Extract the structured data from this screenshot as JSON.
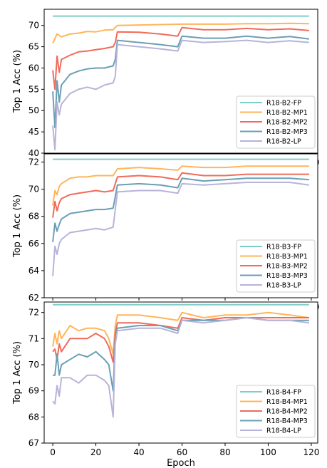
{
  "chart_data": [
    {
      "type": "line",
      "title": "",
      "xlabel": "",
      "ylabel": "Top 1 Acc (%)",
      "xlim": [
        -4,
        123
      ],
      "ylim": [
        40,
        73.8
      ],
      "xticks": [
        "0",
        "20",
        "40",
        "60",
        "80",
        "100",
        "120"
      ],
      "yticks": [
        "40",
        "45",
        "50",
        "55",
        "60",
        "65",
        "70"
      ],
      "grid": false,
      "legend_position": "bottom-right",
      "series": [
        {
          "name": "R18-B2-FP",
          "color": "#7fcdc8",
          "x": [
            0,
            119
          ],
          "values": [
            72.2,
            72.2
          ]
        },
        {
          "name": "R18-B2-MP1",
          "color": "#ffb55a",
          "x": [
            0,
            2,
            4,
            8,
            12,
            16,
            20,
            24,
            28,
            30,
            40,
            50,
            60,
            70,
            80,
            90,
            100,
            110,
            119
          ],
          "values": [
            65.8,
            68.0,
            67.3,
            68.0,
            68.2,
            68.6,
            68.5,
            68.9,
            69.0,
            70.0,
            70.1,
            70.2,
            70.3,
            70.3,
            70.3,
            70.4,
            70.4,
            70.5,
            70.4
          ]
        },
        {
          "name": "R18-B2-MP2",
          "color": "#f06b5a",
          "x": [
            0,
            1,
            2,
            3,
            4,
            8,
            12,
            16,
            20,
            24,
            28,
            29,
            30,
            40,
            50,
            58,
            60,
            70,
            80,
            90,
            100,
            110,
            119
          ],
          "values": [
            59.5,
            55.0,
            62.8,
            59.0,
            62.0,
            63.0,
            63.8,
            64.0,
            64.3,
            64.6,
            65.0,
            66.0,
            68.5,
            68.4,
            68.0,
            67.5,
            69.5,
            69.0,
            69.0,
            69.3,
            69.0,
            69.2,
            68.8
          ]
        },
        {
          "name": "R18-B2-MP3",
          "color": "#6a9fb5",
          "x": [
            0,
            1,
            2,
            3,
            4,
            8,
            12,
            16,
            20,
            24,
            28,
            29,
            30,
            40,
            50,
            58,
            60,
            70,
            80,
            90,
            100,
            110,
            119
          ],
          "values": [
            54.5,
            46.0,
            57.0,
            52.0,
            56.0,
            58.5,
            59.3,
            59.8,
            60.0,
            60.0,
            60.5,
            62.0,
            66.5,
            66.0,
            65.5,
            65.0,
            67.5,
            67.0,
            67.0,
            67.5,
            67.0,
            67.4,
            66.8
          ]
        },
        {
          "name": "R18-B2-LP",
          "color": "#b8b3d9",
          "x": [
            0,
            1,
            2,
            3,
            4,
            8,
            12,
            16,
            20,
            24,
            28,
            29,
            30,
            40,
            50,
            58,
            60,
            70,
            80,
            90,
            100,
            110,
            119
          ],
          "values": [
            46.5,
            40.8,
            52.0,
            49.0,
            51.5,
            54.0,
            55.0,
            55.5,
            55.0,
            56.0,
            56.5,
            58.0,
            65.5,
            65.0,
            64.5,
            64.0,
            66.5,
            66.0,
            66.2,
            66.5,
            66.0,
            66.4,
            66.0
          ]
        }
      ]
    },
    {
      "type": "line",
      "title": "",
      "xlabel": "",
      "ylabel": "Top 1 Acc (%)",
      "xlim": [
        -4,
        123
      ],
      "ylim": [
        62,
        72.6
      ],
      "xticks": [
        "0",
        "20",
        "40",
        "60",
        "80",
        "100",
        "120"
      ],
      "yticks": [
        "62",
        "64",
        "66",
        "68",
        "70",
        "72"
      ],
      "grid": false,
      "legend_position": "bottom-right",
      "series": [
        {
          "name": "R18-B3-FP",
          "color": "#7fcdc8",
          "x": [
            0,
            119
          ],
          "values": [
            72.2,
            72.2
          ]
        },
        {
          "name": "R18-B3-MP1",
          "color": "#ffb55a",
          "x": [
            0,
            1,
            2,
            3,
            4,
            8,
            12,
            16,
            20,
            24,
            28,
            30,
            40,
            50,
            58,
            60,
            70,
            80,
            90,
            100,
            110,
            119
          ],
          "values": [
            68.8,
            69.9,
            69.6,
            70.2,
            70.4,
            70.8,
            70.9,
            70.9,
            71.0,
            71.0,
            71.0,
            71.5,
            71.6,
            71.5,
            71.4,
            71.7,
            71.6,
            71.6,
            71.7,
            71.7,
            71.7,
            71.7
          ]
        },
        {
          "name": "R18-B3-MP2",
          "color": "#f06b5a",
          "x": [
            0,
            1,
            2,
            3,
            4,
            8,
            12,
            16,
            20,
            24,
            28,
            30,
            40,
            50,
            58,
            60,
            70,
            80,
            90,
            100,
            110,
            119
          ],
          "values": [
            67.9,
            69.1,
            68.4,
            69.0,
            69.3,
            69.6,
            69.7,
            69.8,
            69.9,
            69.8,
            69.9,
            70.9,
            71.0,
            70.9,
            70.7,
            71.2,
            71.0,
            71.0,
            71.1,
            71.1,
            71.1,
            71.1
          ]
        },
        {
          "name": "R18-B3-MP3",
          "color": "#6a9fb5",
          "x": [
            0,
            1,
            2,
            3,
            4,
            8,
            12,
            16,
            20,
            24,
            28,
            30,
            40,
            50,
            58,
            60,
            70,
            80,
            90,
            100,
            110,
            119
          ],
          "values": [
            66.1,
            67.5,
            66.9,
            67.4,
            67.8,
            68.2,
            68.3,
            68.4,
            68.5,
            68.5,
            68.6,
            70.3,
            70.4,
            70.3,
            70.1,
            70.8,
            70.6,
            70.7,
            70.8,
            70.8,
            70.8,
            70.7
          ]
        },
        {
          "name": "R18-B3-LP",
          "color": "#b8b3d9",
          "x": [
            0,
            1,
            2,
            3,
            4,
            8,
            12,
            16,
            20,
            24,
            28,
            30,
            40,
            50,
            58,
            60,
            70,
            80,
            90,
            100,
            110,
            119
          ],
          "values": [
            63.6,
            65.8,
            65.2,
            66.0,
            66.3,
            66.8,
            66.9,
            67.0,
            67.1,
            67.0,
            67.2,
            69.8,
            69.9,
            69.9,
            69.7,
            70.4,
            70.3,
            70.4,
            70.5,
            70.5,
            70.5,
            70.3
          ]
        }
      ]
    },
    {
      "type": "line",
      "title": "",
      "xlabel": "Epoch",
      "ylabel": "Top 1 Acc (%)",
      "xlim": [
        -4,
        123
      ],
      "ylim": [
        67,
        72.4
      ],
      "xticks": [
        "0",
        "20",
        "40",
        "60",
        "80",
        "100",
        "120"
      ],
      "yticks": [
        "67",
        "68",
        "69",
        "70",
        "71",
        "72"
      ],
      "grid": false,
      "legend_position": "bottom-right",
      "series": [
        {
          "name": "R18-B4-FP",
          "color": "#7fcdc8",
          "x": [
            0,
            119
          ],
          "values": [
            72.3,
            72.3
          ]
        },
        {
          "name": "R18-B4-MP1",
          "color": "#ffb55a",
          "x": [
            0,
            1,
            2,
            3,
            4,
            8,
            12,
            16,
            20,
            24,
            26,
            28,
            29,
            30,
            40,
            50,
            58,
            60,
            70,
            80,
            90,
            100,
            110,
            119
          ],
          "values": [
            70.7,
            71.2,
            70.8,
            71.3,
            71.0,
            71.5,
            71.3,
            71.4,
            71.4,
            71.3,
            71.0,
            70.4,
            71.5,
            71.9,
            71.9,
            71.8,
            71.7,
            72.0,
            71.8,
            71.9,
            71.9,
            72.0,
            71.9,
            71.8
          ]
        },
        {
          "name": "R18-B4-MP2",
          "color": "#f06b5a",
          "x": [
            0,
            1,
            2,
            3,
            4,
            8,
            12,
            16,
            20,
            24,
            26,
            28,
            29,
            30,
            40,
            50,
            58,
            60,
            70,
            80,
            90,
            100,
            110,
            119
          ],
          "values": [
            70.5,
            70.6,
            70.2,
            70.8,
            70.5,
            71.0,
            71.0,
            71.0,
            71.2,
            71.0,
            70.7,
            70.1,
            71.2,
            71.6,
            71.6,
            71.5,
            71.4,
            71.8,
            71.7,
            71.8,
            71.8,
            71.8,
            71.8,
            71.8
          ]
        },
        {
          "name": "R18-B4-MP3",
          "color": "#6a9fb5",
          "x": [
            0,
            1,
            2,
            3,
            4,
            8,
            12,
            16,
            20,
            24,
            26,
            28,
            29,
            30,
            40,
            50,
            58,
            60,
            70,
            80,
            90,
            100,
            110,
            119
          ],
          "values": [
            69.6,
            69.6,
            70.4,
            69.6,
            70.0,
            70.2,
            70.4,
            70.3,
            70.5,
            70.2,
            70.0,
            69.0,
            71.0,
            71.4,
            71.5,
            71.5,
            71.3,
            71.7,
            71.7,
            71.7,
            71.8,
            71.7,
            71.7,
            71.7
          ]
        },
        {
          "name": "R18-B4-LP",
          "color": "#b8b3d9",
          "x": [
            0,
            1,
            2,
            3,
            4,
            8,
            12,
            16,
            20,
            24,
            26,
            28,
            29,
            30,
            40,
            50,
            58,
            60,
            70,
            80,
            90,
            100,
            110,
            119
          ],
          "values": [
            68.6,
            68.5,
            69.2,
            68.8,
            69.5,
            69.5,
            69.3,
            69.6,
            69.6,
            69.4,
            69.2,
            68.0,
            70.8,
            71.3,
            71.4,
            71.4,
            71.2,
            71.7,
            71.6,
            71.7,
            71.8,
            71.7,
            71.7,
            71.6
          ]
        }
      ]
    }
  ]
}
